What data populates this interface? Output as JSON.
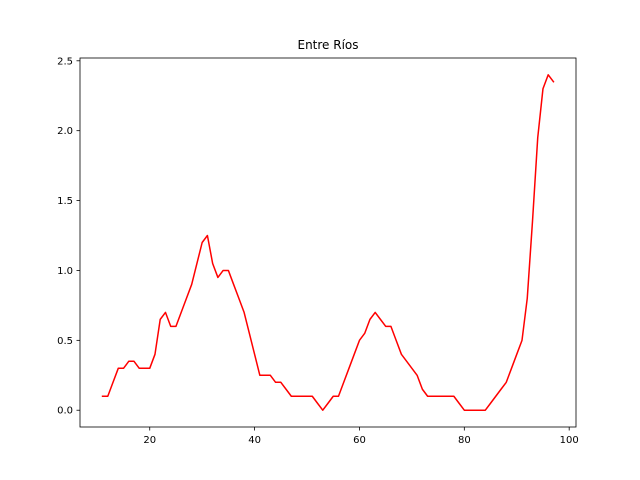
{
  "chart_data": {
    "type": "line",
    "title": "Entre Ríos",
    "xlabel": "",
    "ylabel": "",
    "xlim": [
      6.7,
      101.3
    ],
    "ylim": [
      -0.12,
      2.52
    ],
    "xticks": [
      20,
      40,
      60,
      80,
      100
    ],
    "yticks": [
      0.0,
      0.5,
      1.0,
      1.5,
      2.0,
      2.5
    ],
    "xtick_labels": [
      "20",
      "40",
      "60",
      "80",
      "100"
    ],
    "ytick_labels": [
      "0.0",
      "0.5",
      "1.0",
      "1.5",
      "2.0",
      "2.5"
    ],
    "grid": false,
    "series": [
      {
        "color": "#ff0000",
        "x": [
          11,
          12,
          13,
          14,
          15,
          16,
          17,
          18,
          19,
          20,
          21,
          22,
          23,
          24,
          25,
          26,
          27,
          28,
          29,
          30,
          31,
          32,
          33,
          34,
          35,
          36,
          37,
          38,
          39,
          40,
          41,
          42,
          43,
          44,
          45,
          46,
          47,
          48,
          49,
          50,
          51,
          52,
          53,
          54,
          55,
          56,
          57,
          58,
          59,
          60,
          61,
          62,
          63,
          64,
          65,
          66,
          67,
          68,
          69,
          70,
          71,
          72,
          73,
          74,
          75,
          76,
          77,
          78,
          79,
          80,
          81,
          82,
          83,
          84,
          85,
          86,
          87,
          88,
          89,
          90,
          91,
          92,
          93,
          94,
          95,
          96,
          97
        ],
        "y": [
          0.1,
          0.1,
          0.2,
          0.3,
          0.3,
          0.35,
          0.35,
          0.3,
          0.3,
          0.3,
          0.4,
          0.65,
          0.7,
          0.6,
          0.6,
          0.7,
          0.8,
          0.9,
          1.05,
          1.2,
          1.25,
          1.05,
          0.95,
          1.0,
          1.0,
          0.9,
          0.8,
          0.7,
          0.55,
          0.4,
          0.25,
          0.25,
          0.25,
          0.2,
          0.2,
          0.15,
          0.1,
          0.1,
          0.1,
          0.1,
          0.1,
          0.05,
          0.0,
          0.05,
          0.1,
          0.1,
          0.2,
          0.3,
          0.4,
          0.5,
          0.55,
          0.65,
          0.7,
          0.65,
          0.6,
          0.6,
          0.5,
          0.4,
          0.35,
          0.3,
          0.25,
          0.15,
          0.1,
          0.1,
          0.1,
          0.1,
          0.1,
          0.1,
          0.05,
          0.0,
          0.0,
          0.0,
          0.0,
          0.0,
          0.05,
          0.1,
          0.15,
          0.2,
          0.3,
          0.4,
          0.5,
          0.8,
          1.35,
          1.95,
          2.3,
          2.4,
          2.35
        ]
      }
    ]
  }
}
